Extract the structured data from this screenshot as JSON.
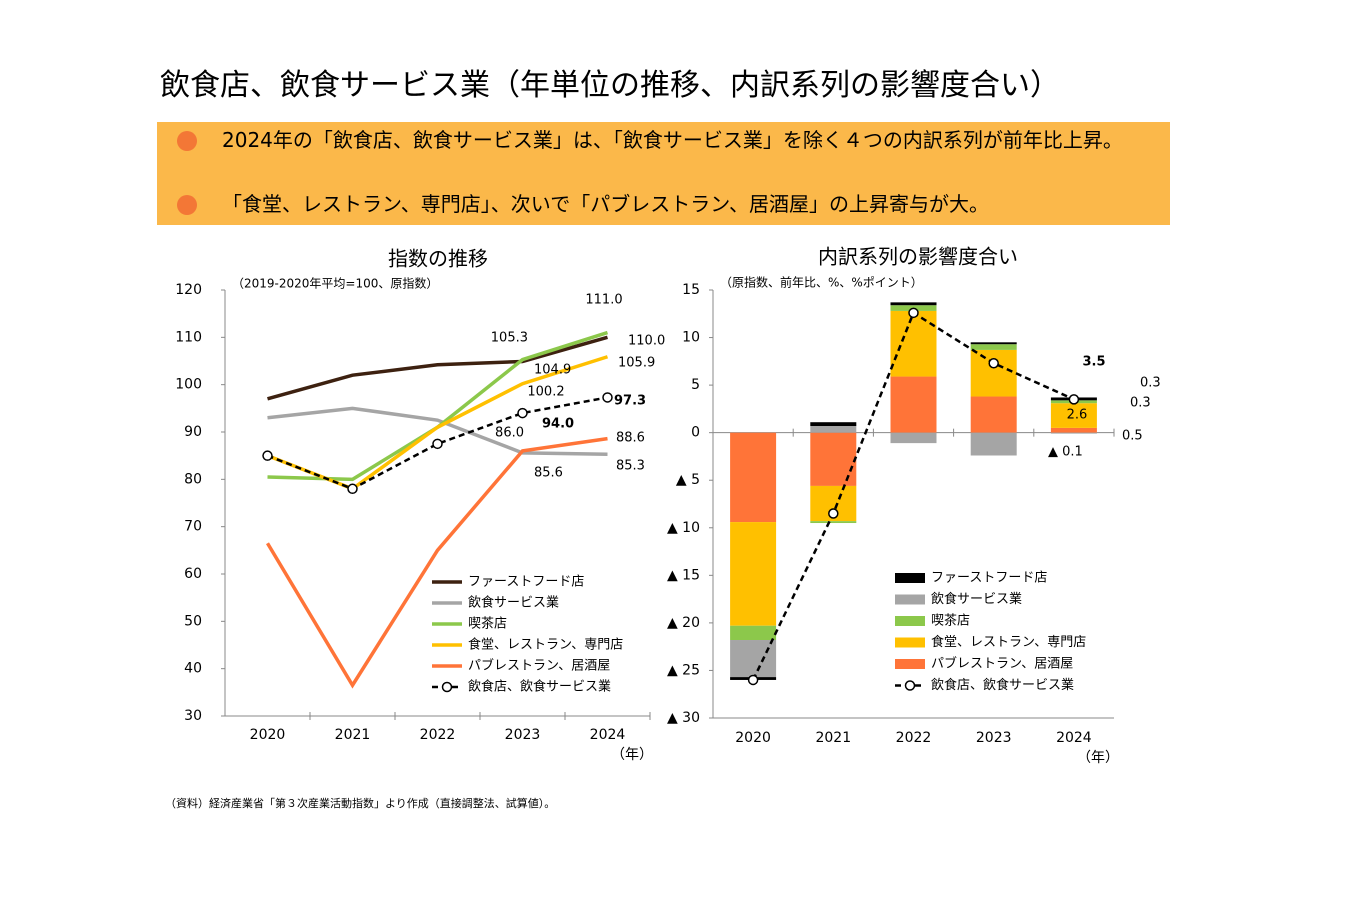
{
  "title": "飲食店、飲食サービス業（年単位の推移、内訳系列の影響度合い）",
  "bullets": [
    "2024年の「飲食店、飲食サービス業」は、「飲食サービス業」を除く４つの内訳系列が前年比上昇。",
    "「食堂、レストラン、専門店」、次いで「パブレストラン、居酒屋」の上昇寄与が大。"
  ],
  "source": "（資料）経済産業省「第３次産業活動指数」より作成（直接調整法、試算値）。",
  "chart_data": [
    {
      "type": "line",
      "title": "指数の推移",
      "subtitle": "（2019-2020年平均=100、原指数）",
      "x_unit": "（年）",
      "categories": [
        "2020",
        "2021",
        "2022",
        "2023",
        "2024"
      ],
      "ylim": [
        30,
        120
      ],
      "yticks": [
        30,
        40,
        50,
        60,
        70,
        80,
        90,
        100,
        110,
        120
      ],
      "series": [
        {
          "name": "ファーストフード店",
          "color": "#3d2110",
          "values": [
            97,
            102,
            104.2,
            104.9,
            110
          ],
          "value_labels": [
            null,
            null,
            null,
            "104.9",
            "110.0"
          ]
        },
        {
          "name": "飲食サービス業",
          "color": "#a5a5a5",
          "values": [
            93,
            95,
            92.5,
            85.6,
            85.3
          ],
          "value_labels": [
            null,
            null,
            null,
            "85.6",
            "85.3"
          ]
        },
        {
          "name": "喫茶店",
          "color": "#8cc84b",
          "values": [
            80.5,
            80,
            91,
            105.3,
            111
          ],
          "value_labels": [
            null,
            null,
            null,
            "105.3",
            "111.0"
          ]
        },
        {
          "name": "食堂、レストラン、専門店",
          "color": "#ffc000",
          "values": [
            85,
            78,
            91,
            100.2,
            105.9
          ],
          "value_labels": [
            null,
            null,
            null,
            "100.2",
            "105.9"
          ]
        },
        {
          "name": "パブレストラン、居酒屋",
          "color": "#ff7438",
          "values": [
            66.5,
            36.5,
            65,
            86,
            88.6
          ],
          "value_labels": [
            null,
            null,
            null,
            "86.0",
            "88.6"
          ]
        },
        {
          "name": "飲食店、飲食サービス業",
          "color": "#000000",
          "dashed": true,
          "markers": true,
          "values": [
            85,
            78,
            87.5,
            94,
            97.3
          ],
          "value_labels": [
            null,
            null,
            null,
            "94.0",
            "97.3"
          ]
        }
      ]
    },
    {
      "type": "bar",
      "stacked": true,
      "title": "内訳系列の影響度合い",
      "subtitle": "（原指数、前年比、%、%ポイント）",
      "x_unit": "（年）",
      "categories": [
        "2020",
        "2021",
        "2022",
        "2023",
        "2024"
      ],
      "ylim": [
        -30,
        15
      ],
      "yticks": [
        {
          "value": -30,
          "label": "▲ 30"
        },
        {
          "value": -25,
          "label": "▲ 25"
        },
        {
          "value": -20,
          "label": "▲ 20"
        },
        {
          "value": -15,
          "label": "▲ 15"
        },
        {
          "value": -10,
          "label": "▲ 10"
        },
        {
          "value": -5,
          "label": "▲ 5"
        },
        0,
        5,
        10,
        15
      ],
      "series": [
        {
          "name": "ファーストフード店",
          "color": "#000000",
          "values": [
            -0.3,
            0.4,
            0.3,
            0.2,
            0.3
          ],
          "value_labels": [
            null,
            null,
            null,
            null,
            "0.3"
          ]
        },
        {
          "name": "飲食サービス業",
          "color": "#a5a5a5",
          "values": [
            -3.9,
            0.7,
            -1.1,
            -2.4,
            -0.1
          ],
          "value_labels": [
            null,
            null,
            null,
            null,
            "▲ 0.1"
          ]
        },
        {
          "name": "喫茶店",
          "color": "#8cc84b",
          "values": [
            -1.5,
            -0.2,
            0.6,
            0.6,
            0.3
          ],
          "value_labels": [
            null,
            null,
            null,
            null,
            "0.3"
          ]
        },
        {
          "name": "食堂、レストラン、専門店",
          "color": "#ffc000",
          "values": [
            -10.9,
            -3.7,
            6.9,
            4.9,
            2.6
          ],
          "value_labels": [
            null,
            null,
            null,
            null,
            "2.6"
          ]
        },
        {
          "name": "パブレストラン、居酒屋",
          "color": "#ff7438",
          "values": [
            -9.4,
            -5.6,
            5.9,
            3.8,
            0.5
          ],
          "value_labels": [
            null,
            null,
            null,
            null,
            "0.5"
          ]
        },
        {
          "name": "飲食店、飲食サービス業",
          "color": "#000000",
          "type": "line",
          "dashed": true,
          "markers": true,
          "values": [
            -26,
            -8.5,
            12.6,
            7.3,
            3.5
          ],
          "value_labels": [
            null,
            null,
            null,
            null,
            "3.5"
          ]
        }
      ]
    }
  ]
}
